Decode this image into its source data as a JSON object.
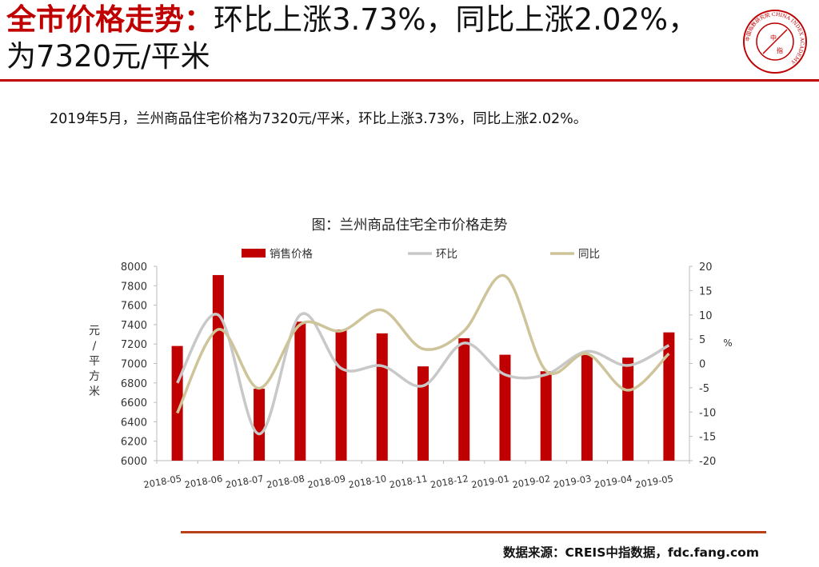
{
  "header": {
    "title_lead": "全市价格走势：",
    "title_rest": "环比上涨3.73%，同比上涨2.02%，为7320元/平米"
  },
  "summary": "2019年5月，兰州商品住宅价格为7320元/平米，环比上涨3.73%，同比上涨2.02%。",
  "source": "数据来源：CREIS中指数据，fdc.fang.com",
  "logo": {
    "text": "中国指数研究院 CHINA INDEX ACADEMY",
    "center_top": "中",
    "center_bottom": "指"
  },
  "colors": {
    "accent": "#c00000",
    "bar": "#c00000",
    "mom": "#c8c8c8",
    "yoy": "#cec49a",
    "rule_bottom": "#b8401a"
  },
  "chart_data": {
    "type": "bar",
    "title": "图：兰州商品住宅全市价格走势",
    "categories": [
      "2018-05",
      "2018-06",
      "2018-07",
      "2018-08",
      "2018-09",
      "2018-10",
      "2018-11",
      "2018-12",
      "2019-01",
      "2019-02",
      "2019-03",
      "2019-04",
      "2019-05"
    ],
    "series": [
      {
        "name": "销售价格",
        "type": "bar",
        "axis": "left",
        "values": [
          7180,
          7910,
          6740,
          7430,
          7350,
          7310,
          6970,
          7260,
          7090,
          6920,
          7090,
          7060,
          7320
        ]
      },
      {
        "name": "环比",
        "type": "line",
        "axis": "right",
        "values": [
          -4,
          10,
          -14.5,
          10,
          -1,
          -0.5,
          -4.6,
          4.2,
          -2.3,
          -2.3,
          2.5,
          -0.4,
          3.73
        ]
      },
      {
        "name": "同比",
        "type": "line",
        "axis": "right",
        "values": [
          -10.2,
          7,
          -5.1,
          8,
          6.7,
          11,
          3,
          6.7,
          18,
          -1.5,
          2,
          -5.5,
          2.02
        ]
      }
    ],
    "ylabel_left": "元/平方米",
    "ylabel_right": "%",
    "ylim_left": [
      6000,
      8000
    ],
    "ylim_right": [
      -20,
      20
    ],
    "yticks_left": [
      "8000",
      "7800",
      "7600",
      "7400",
      "7200",
      "7000",
      "6800",
      "6600",
      "6400",
      "6200",
      "6000"
    ],
    "yticks_right": [
      "20",
      "15",
      "10",
      "5",
      "0",
      "-5",
      "-10",
      "-15",
      "-20"
    ],
    "legend_position": "top",
    "grid": false
  }
}
